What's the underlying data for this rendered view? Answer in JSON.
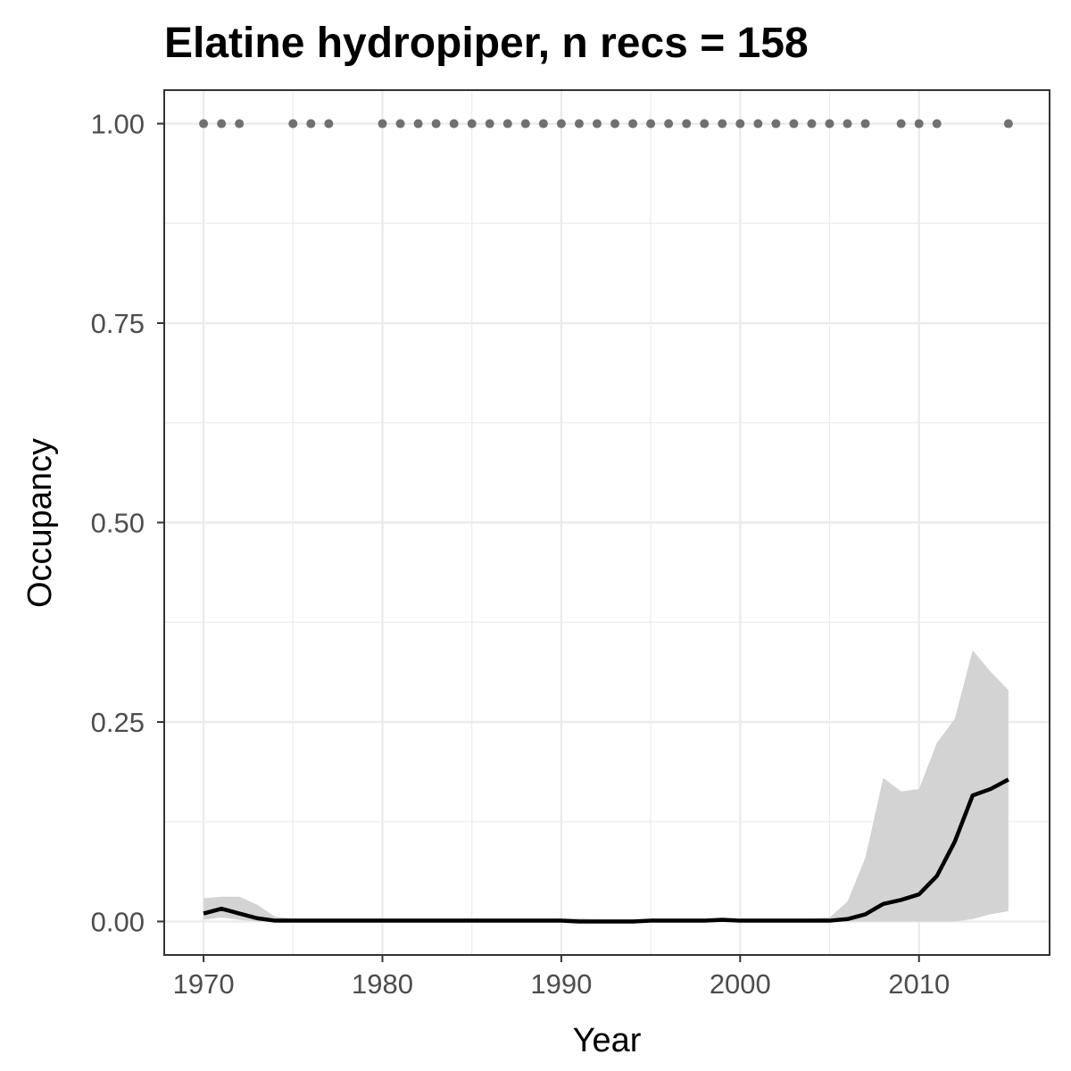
{
  "chart_data": {
    "type": "line",
    "title": "Elatine hydropiper, n recs = 158",
    "xlabel": "Year",
    "ylabel": "Occupancy",
    "xlim": [
      1967.8,
      2017.3
    ],
    "ylim": [
      -0.042,
      1.042
    ],
    "x_ticks": [
      1970,
      1980,
      1990,
      2000,
      2010
    ],
    "x_tick_labels": [
      "1970",
      "1980",
      "1990",
      "2000",
      "2010"
    ],
    "y_ticks": [
      0,
      0.25,
      0.5,
      0.75,
      1.0
    ],
    "y_tick_labels": [
      "0.00",
      "0.25",
      "0.50",
      "0.75",
      "1.00"
    ],
    "grid": true,
    "legend": "none",
    "colors": {
      "line": "#000000",
      "ribbon": "#d3d3d3",
      "points": "#707070",
      "grid": "#ebebeb",
      "panel_border": "#333333"
    },
    "records": {
      "y": 1.0,
      "years": [
        1970,
        1971,
        1972,
        1975,
        1976,
        1977,
        1980,
        1981,
        1982,
        1983,
        1984,
        1985,
        1986,
        1987,
        1988,
        1989,
        1990,
        1991,
        1992,
        1993,
        1994,
        1995,
        1996,
        1997,
        1998,
        1999,
        2000,
        2001,
        2002,
        2003,
        2004,
        2005,
        2006,
        2007,
        2009,
        2010,
        2011,
        2015
      ]
    },
    "series": [
      {
        "x": [
          1970,
          1971,
          1972,
          1973,
          1974,
          1975,
          1976,
          1977,
          1978,
          1979,
          1980,
          1981,
          1982,
          1983,
          1984,
          1985,
          1986,
          1987,
          1988,
          1989,
          1990,
          1991,
          1992,
          1993,
          1994,
          1995,
          1996,
          1997,
          1998,
          1999,
          2000,
          2001,
          2002,
          2003,
          2004,
          2005,
          2006,
          2007,
          2008,
          2009,
          2010,
          2011,
          2012,
          2013,
          2014,
          2015
        ],
        "mean": [
          0.01,
          0.016,
          0.01,
          0.004,
          0.001,
          0.001,
          0.001,
          0.001,
          0.001,
          0.001,
          0.001,
          0.001,
          0.001,
          0.001,
          0.001,
          0.001,
          0.001,
          0.001,
          0.001,
          0.001,
          0.001,
          0.0,
          0.0,
          0.0,
          0.0,
          0.001,
          0.001,
          0.001,
          0.001,
          0.002,
          0.001,
          0.001,
          0.001,
          0.001,
          0.001,
          0.001,
          0.003,
          0.009,
          0.022,
          0.027,
          0.034,
          0.057,
          0.1,
          0.158,
          0.166,
          0.178
        ],
        "lower": [
          0.002,
          0.005,
          0.002,
          0.0,
          0.0,
          0.0,
          0.0,
          0.0,
          0.0,
          0.0,
          0.0,
          0.0,
          0.0,
          0.0,
          0.0,
          0.0,
          0.0,
          0.0,
          0.0,
          0.0,
          0.0,
          0.0,
          0.0,
          0.0,
          0.0,
          0.0,
          0.0,
          0.0,
          0.0,
          0.0,
          0.0,
          0.0,
          0.0,
          0.0,
          0.0,
          0.0,
          0.0,
          0.0,
          0.0,
          0.0,
          0.0,
          0.0,
          0.0,
          0.003,
          0.009,
          0.013
        ],
        "upper": [
          0.029,
          0.031,
          0.031,
          0.021,
          0.006,
          0.004,
          0.004,
          0.004,
          0.004,
          0.004,
          0.004,
          0.004,
          0.004,
          0.004,
          0.004,
          0.004,
          0.004,
          0.004,
          0.004,
          0.004,
          0.004,
          0.004,
          0.003,
          0.003,
          0.003,
          0.004,
          0.004,
          0.004,
          0.004,
          0.005,
          0.004,
          0.004,
          0.004,
          0.004,
          0.004,
          0.005,
          0.025,
          0.08,
          0.18,
          0.163,
          0.166,
          0.224,
          0.254,
          0.34,
          0.313,
          0.29
        ]
      }
    ]
  }
}
